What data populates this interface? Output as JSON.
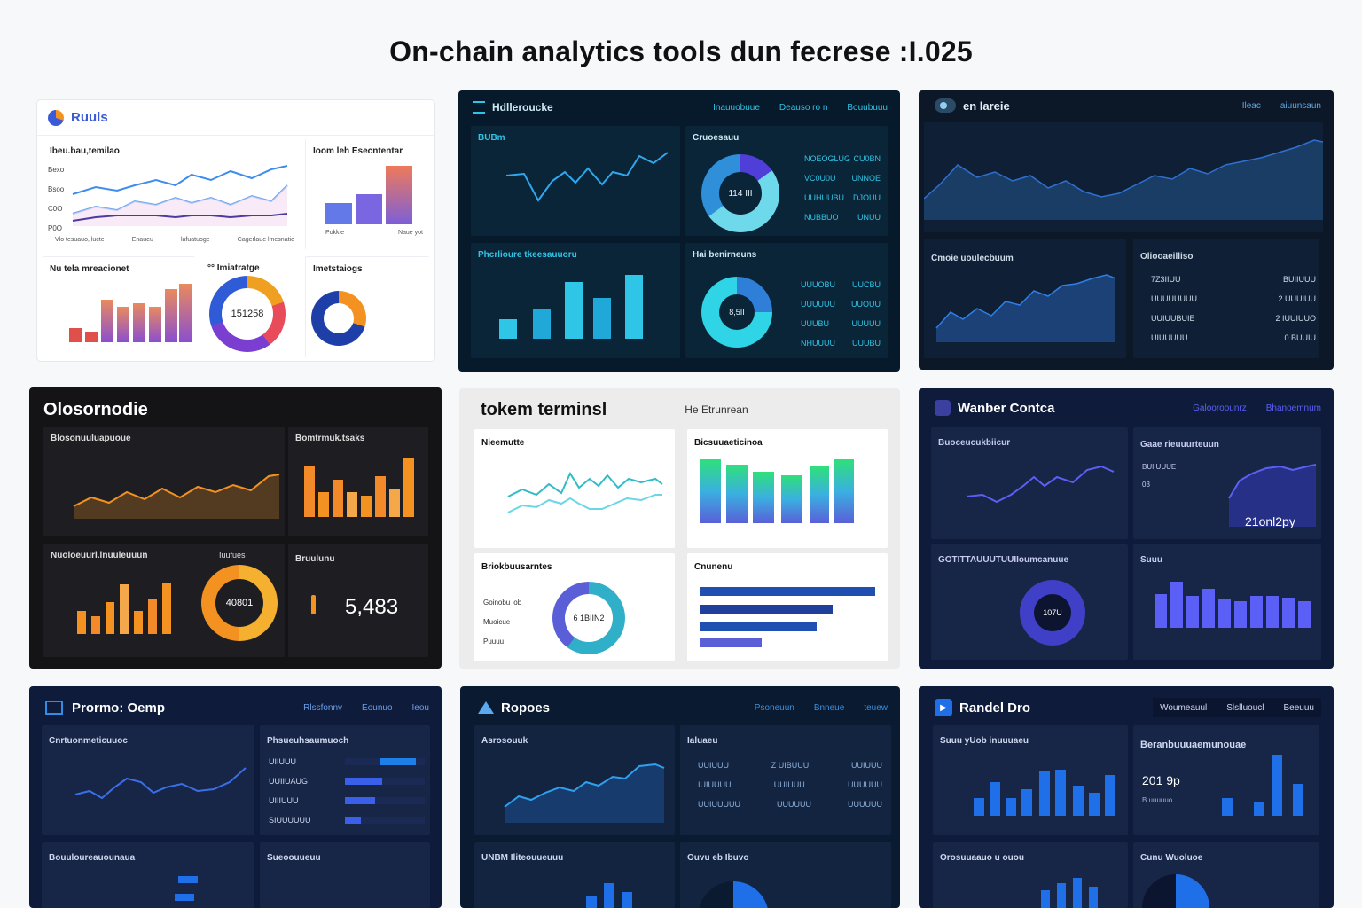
{
  "page_title": "On-chain analytics tools dun fecrese :I.025",
  "colors": {
    "dark_blue_bg": "#061a2c",
    "navy_bg": "#0f1b3a",
    "black_bg": "#141416",
    "light_bg": "#ffffff",
    "accent_teal": "#2fc5e6",
    "accent_orange": "#f39221",
    "accent_indigo": "#5b5ff5",
    "accent_blue": "#1f6fe8"
  },
  "cards": [
    {
      "name": "Ruuls",
      "icon": "pie-logo-icon",
      "panels": [
        "Ibeu.bau,temilao",
        "Ioom leh Esecntentar",
        "Nu tela mreacionet",
        "°° Imiatratge",
        "Imetstaiogs"
      ],
      "donut_value": "151258",
      "y_ticks": [
        "Bexo",
        "Bsoo",
        "C0O",
        "P0O"
      ],
      "x_ticks": [
        "Vlo tesuauo, lucte",
        "Enaueu",
        "lafuatuoge",
        "Cagerlaue lmesnatie"
      ],
      "legend": [
        "Pokkie",
        "Naue yot"
      ]
    },
    {
      "name": "Hdlleroucke",
      "icon": "grid-logo-icon",
      "nav": [
        "Inauuobuue",
        "Deauso ro n",
        "Bouubuuu"
      ],
      "panels": [
        "BUBm",
        "Cruoesauu",
        "Phcrlioure tkeesauuoru",
        "Hai benirneuns"
      ],
      "donut_values": [
        "114 III",
        "8,5II"
      ],
      "legend_rows": [
        [
          "NOEOGLUG",
          "CU0BN"
        ],
        [
          "VC0U0U",
          "UNNOE"
        ],
        [
          "UUHUUBU",
          "DJOUU"
        ],
        [
          "NUBBUO",
          "UNUU"
        ]
      ],
      "legend_rows_2": [
        [
          "UUUOBU",
          "UUCBU"
        ],
        [
          "UUUUUU",
          "UUOUU"
        ],
        [
          "UUUBU",
          "UUUUU"
        ],
        [
          "NHUUUU",
          "UUUBU"
        ]
      ]
    },
    {
      "name": "en lareie",
      "icon": "toggle-logo-icon",
      "nav": [
        "Ileac",
        "aiuunsaun"
      ],
      "panels": [
        "Cmoie uoulecbuum",
        "Oliooaeilliso"
      ],
      "table": [
        [
          "7Z3IIUU",
          "BUIIUUU"
        ],
        [
          "UUUUUUUU",
          "2 UUUIUU"
        ],
        [
          "UUIUUBUIE",
          "2 IUUIUUO"
        ],
        [
          "UIUUUUU",
          "0 BUUIU"
        ]
      ]
    },
    {
      "name": "Olosornodie",
      "icon": "none",
      "panels": [
        "Blosonuuluapuoue",
        "Bomtrmuk.tsaks",
        "Nuoloeuurl.lnuuleuuun",
        "Iuufues",
        "Bruulunu"
      ],
      "donut_value": "40801",
      "big_number": "5,483"
    },
    {
      "name": "tokem terminsl",
      "subtitle": "He Etrunrean",
      "panels": [
        "Nieemutte",
        "Bicsuuaeticinoa",
        "Briokbuusarntes",
        "Cnunenu"
      ],
      "donut_value": "6 1BIIN2",
      "legend": [
        "Goinobu lob",
        "Muoicue",
        "Puuuu"
      ]
    },
    {
      "name": "Wanber Contca",
      "icon": "square-logo-icon",
      "nav": [
        "Galooroounrz",
        "Bhanoemnum"
      ],
      "panels": [
        "Buoceucukbiicur",
        "Gaae rieuuurteuun",
        "GOTITTAUUUTUUIIoumcanuue",
        "Suuu"
      ],
      "donut_value": "107U",
      "big_value": "21onl2py",
      "stats": [
        "BUIIUUUE",
        "03"
      ]
    },
    {
      "name": "Prormo: Oemp",
      "icon": "layout-logo-icon",
      "nav": [
        "Rlssfonnv",
        "Eounuo",
        "Ieou"
      ],
      "panels": [
        "Cnrtuonmeticuuoc",
        "Phsueuhsaumuoch",
        "Bouuloureauounaua",
        "Sueoouueuu"
      ],
      "bar_labels": [
        "UIIUUU",
        "UUIIUAUG",
        "UIIIUUU",
        "SIUUUUUU"
      ]
    },
    {
      "name": "Ropoes",
      "icon": "mountain-logo-icon",
      "nav": [
        "Psoneuun",
        "Bnneue",
        "teuew"
      ],
      "panels": [
        "Asrosouuk",
        "Ialuaeu",
        "UNBM Iliteouueuuu",
        "Ouvu eb Ibuvo"
      ],
      "table": [
        [
          "UUIUUU",
          "Z UIBUUU",
          "UUIUUU"
        ],
        [
          "IUIUUUU",
          "UUIUUU",
          "UUUUUU"
        ],
        [
          "UUIUUUUU",
          "UUUUUU",
          "UUUUUU"
        ]
      ]
    },
    {
      "name": "Randel Dro",
      "icon": "play-logo-icon",
      "nav": [
        "Woumeauul",
        "Slslluoucl",
        "Beeuuu"
      ],
      "panels": [
        "Suuu yUob inuuuaeu",
        "Beranbuuuaemunouae",
        "Orosuuaauo u ouou",
        "Cunu Wuoluoe"
      ],
      "big_value": "201 9p",
      "sub_value": "B uuuuuo"
    }
  ]
}
